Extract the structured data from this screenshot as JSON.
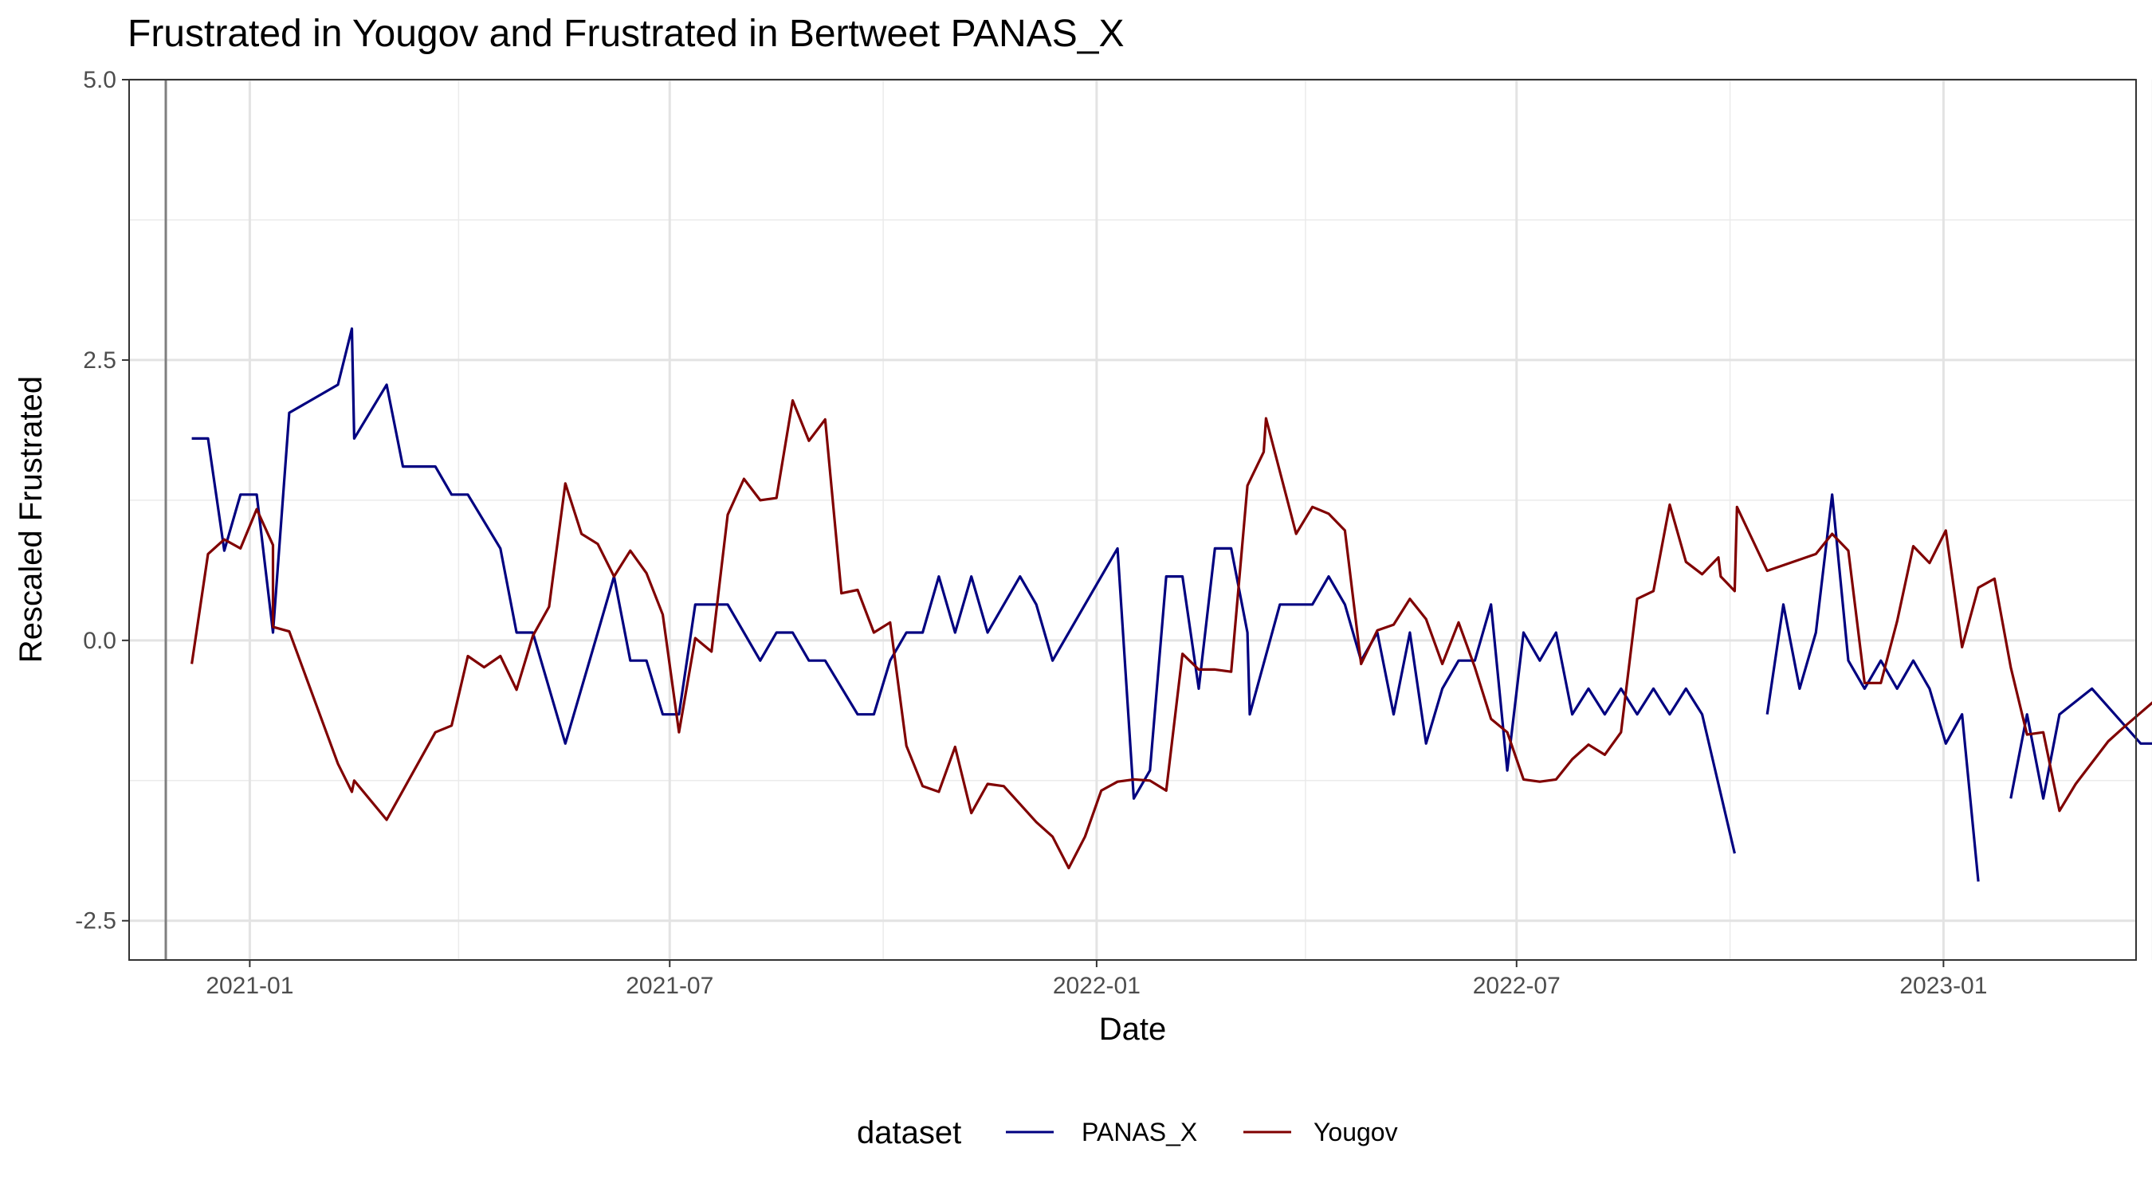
{
  "chart_data": {
    "type": "line",
    "title": "Frustrated  in Yougov and  Frustrated  in Bertweet   PANAS_X",
    "xlabel": "Date",
    "ylabel": "Rescaled  Frustrated",
    "x_type": "date",
    "xlim": [
      "2020-11-10",
      "2023-03-25"
    ],
    "ylim": [
      -2.85,
      5.0
    ],
    "x_ticks": [
      {
        "date": "2021-01-01",
        "label": "2021-01"
      },
      {
        "date": "2021-07-01",
        "label": "2021-07"
      },
      {
        "date": "2022-01-01",
        "label": "2022-01"
      },
      {
        "date": "2022-07-01",
        "label": "2022-07"
      },
      {
        "date": "2023-01-01",
        "label": "2023-01"
      }
    ],
    "x_minor_ticks": [
      "2021-04-01",
      "2021-10-01",
      "2022-04-01",
      "2022-10-01",
      "2023-04-01"
    ],
    "y_ticks": [
      {
        "value": 5.0,
        "label": "5.0"
      },
      {
        "value": 2.5,
        "label": "2.5"
      },
      {
        "value": 0.0,
        "label": "0.0"
      },
      {
        "value": -2.5,
        "label": "-2.5"
      }
    ],
    "y_minor_ticks": [
      3.75,
      1.25,
      -1.25
    ],
    "vline": "2020-11-10",
    "grid": true,
    "legend": {
      "title": "dataset",
      "position": "bottom"
    },
    "series": [
      {
        "name": "PANAS_X",
        "color": "#000080",
        "points": [
          [
            "2020-12-07",
            1.8
          ],
          [
            "2020-12-14",
            1.8
          ],
          [
            "2020-12-21",
            0.8
          ],
          [
            "2020-12-28",
            1.3
          ],
          [
            "2021-01-04",
            1.3
          ],
          [
            "2021-01-11",
            0.07
          ],
          [
            "2021-01-18",
            2.03
          ],
          [
            "2021-02-08",
            2.28
          ],
          [
            "2021-02-14",
            2.78
          ],
          [
            "2021-02-15",
            1.8
          ],
          [
            "2021-03-01",
            2.28
          ],
          [
            "2021-03-08",
            1.55
          ],
          [
            "2021-03-22",
            1.55
          ],
          [
            "2021-03-29",
            1.3
          ],
          [
            "2021-04-05",
            1.3
          ],
          [
            "2021-04-19",
            0.82
          ],
          [
            "2021-04-26",
            0.07
          ],
          [
            "2021-05-03",
            0.07
          ],
          [
            "2021-05-17",
            -0.92
          ],
          [
            "2021-05-31",
            0.07
          ],
          [
            "2021-06-07",
            0.57
          ],
          [
            "2021-06-14",
            -0.18
          ],
          [
            "2021-06-21",
            -0.18
          ],
          [
            "2021-06-28",
            -0.66
          ],
          [
            "2021-07-05",
            -0.66
          ],
          [
            "2021-07-12",
            0.32
          ],
          [
            "2021-07-26",
            0.32
          ],
          [
            "2021-08-09",
            -0.18
          ],
          [
            "2021-08-16",
            0.07
          ],
          [
            "2021-08-23",
            0.07
          ],
          [
            "2021-08-30",
            -0.18
          ],
          [
            "2021-09-06",
            -0.18
          ],
          [
            "2021-09-20",
            -0.66
          ],
          [
            "2021-09-27",
            -0.66
          ],
          [
            "2021-10-04",
            -0.18
          ],
          [
            "2021-10-11",
            0.07
          ],
          [
            "2021-10-18",
            0.07
          ],
          [
            "2021-10-25",
            0.57
          ],
          [
            "2021-11-01",
            0.07
          ],
          [
            "2021-11-08",
            0.57
          ],
          [
            "2021-11-15",
            0.07
          ],
          [
            "2021-11-29",
            0.57
          ],
          [
            "2021-12-06",
            0.32
          ],
          [
            "2021-12-13",
            -0.18
          ],
          [
            "2021-12-27",
            0.32
          ],
          [
            "2022-01-10",
            0.82
          ],
          [
            "2022-01-17",
            -1.41
          ],
          [
            "2022-01-24",
            -1.16
          ],
          [
            "2022-01-31",
            0.57
          ],
          [
            "2022-02-07",
            0.57
          ],
          [
            "2022-02-14",
            -0.43
          ],
          [
            "2022-02-21",
            0.82
          ],
          [
            "2022-02-28",
            0.82
          ],
          [
            "2022-03-07",
            0.07
          ],
          [
            "2022-03-08",
            -0.66
          ],
          [
            "2022-03-21",
            0.32
          ],
          [
            "2022-04-04",
            0.32
          ],
          [
            "2022-04-11",
            0.57
          ],
          [
            "2022-04-18",
            0.32
          ],
          [
            "2022-04-25",
            -0.18
          ],
          [
            "2022-05-02",
            0.07
          ],
          [
            "2022-05-09",
            -0.66
          ],
          [
            "2022-05-16",
            0.07
          ],
          [
            "2022-05-23",
            -0.92
          ],
          [
            "2022-05-30",
            -0.43
          ],
          [
            "2022-06-06",
            -0.18
          ],
          [
            "2022-06-13",
            -0.18
          ],
          [
            "2022-06-20",
            0.32
          ],
          [
            "2022-06-27",
            -1.16
          ],
          [
            "2022-07-04",
            0.07
          ],
          [
            "2022-07-11",
            -0.18
          ],
          [
            "2022-07-18",
            0.07
          ],
          [
            "2022-07-25",
            -0.66
          ],
          [
            "2022-08-01",
            -0.43
          ],
          [
            "2022-08-08",
            -0.66
          ],
          [
            "2022-08-15",
            -0.43
          ],
          [
            "2022-08-22",
            -0.66
          ],
          [
            "2022-08-29",
            -0.43
          ],
          [
            "2022-09-05",
            -0.66
          ],
          [
            "2022-09-12",
            -0.43
          ],
          [
            "2022-09-19",
            -0.66
          ],
          [
            "2022-10-03",
            -1.9
          ],
          null,
          [
            "2022-10-17",
            -0.66
          ],
          [
            "2022-10-24",
            0.32
          ],
          [
            "2022-10-31",
            -0.43
          ],
          [
            "2022-11-07",
            0.07
          ],
          [
            "2022-11-14",
            1.3
          ],
          [
            "2022-11-21",
            -0.18
          ],
          [
            "2022-11-28",
            -0.43
          ],
          [
            "2022-12-05",
            -0.18
          ],
          [
            "2022-12-12",
            -0.43
          ],
          [
            "2022-12-19",
            -0.18
          ],
          [
            "2022-12-26",
            -0.43
          ],
          [
            "2023-01-02",
            -0.92
          ],
          [
            "2023-01-09",
            -0.66
          ],
          [
            "2023-01-16",
            -2.15
          ],
          null,
          [
            "2023-01-30",
            -1.41
          ],
          [
            "2023-02-06",
            -0.66
          ],
          [
            "2023-02-13",
            -1.41
          ],
          [
            "2023-02-20",
            -0.66
          ],
          [
            "2023-03-06",
            -0.43
          ],
          [
            "2023-03-27",
            -0.92
          ],
          [
            "2023-04-03",
            -0.92
          ]
        ]
      },
      {
        "name": "Yougov",
        "color": "#800000",
        "points": [
          [
            "2020-12-07",
            -0.21
          ],
          [
            "2020-12-14",
            0.77
          ],
          [
            "2020-12-21",
            0.9
          ],
          [
            "2020-12-28",
            0.82
          ],
          [
            "2021-01-04",
            1.17
          ],
          [
            "2021-01-11",
            0.85
          ],
          [
            "2021-01-11",
            0.12
          ],
          [
            "2021-01-18",
            0.08
          ],
          [
            "2021-02-08",
            -1.1
          ],
          [
            "2021-02-14",
            -1.35
          ],
          [
            "2021-02-15",
            -1.25
          ],
          [
            "2021-03-01",
            -1.6
          ],
          [
            "2021-03-22",
            -0.82
          ],
          [
            "2021-03-29",
            -0.76
          ],
          [
            "2021-04-05",
            -0.14
          ],
          [
            "2021-04-12",
            -0.24
          ],
          [
            "2021-04-19",
            -0.14
          ],
          [
            "2021-04-26",
            -0.44
          ],
          [
            "2021-05-03",
            0.04
          ],
          [
            "2021-05-10",
            0.3
          ],
          [
            "2021-05-17",
            1.4
          ],
          [
            "2021-05-24",
            0.95
          ],
          [
            "2021-05-31",
            0.86
          ],
          [
            "2021-06-07",
            0.57
          ],
          [
            "2021-06-14",
            0.8
          ],
          [
            "2021-06-21",
            0.6
          ],
          [
            "2021-06-28",
            0.23
          ],
          [
            "2021-07-05",
            -0.82
          ],
          [
            "2021-07-12",
            0.02
          ],
          [
            "2021-07-19",
            -0.1
          ],
          [
            "2021-07-26",
            1.12
          ],
          [
            "2021-08-02",
            1.44
          ],
          [
            "2021-08-09",
            1.25
          ],
          [
            "2021-08-16",
            1.27
          ],
          [
            "2021-08-23",
            2.14
          ],
          [
            "2021-08-30",
            1.78
          ],
          [
            "2021-09-06",
            1.97
          ],
          [
            "2021-09-13",
            0.42
          ],
          [
            "2021-09-20",
            0.45
          ],
          [
            "2021-09-27",
            0.07
          ],
          [
            "2021-10-04",
            0.16
          ],
          [
            "2021-10-11",
            -0.94
          ],
          [
            "2021-10-18",
            -1.3
          ],
          [
            "2021-10-25",
            -1.35
          ],
          [
            "2021-11-01",
            -0.95
          ],
          [
            "2021-11-08",
            -1.54
          ],
          [
            "2021-11-15",
            -1.28
          ],
          [
            "2021-11-22",
            -1.3
          ],
          [
            "2021-12-06",
            -1.62
          ],
          [
            "2021-12-13",
            -1.75
          ],
          [
            "2021-12-20",
            -2.03
          ],
          [
            "2021-12-27",
            -1.75
          ],
          [
            "2022-01-03",
            -1.34
          ],
          [
            "2022-01-10",
            -1.26
          ],
          [
            "2022-01-17",
            -1.24
          ],
          [
            "2022-01-24",
            -1.25
          ],
          [
            "2022-01-31",
            -1.34
          ],
          [
            "2022-02-07",
            -0.12
          ],
          [
            "2022-02-14",
            -0.26
          ],
          [
            "2022-02-21",
            -0.26
          ],
          [
            "2022-02-28",
            -0.28
          ],
          [
            "2022-03-07",
            1.38
          ],
          [
            "2022-03-14",
            1.68
          ],
          [
            "2022-03-15",
            1.98
          ],
          [
            "2022-03-28",
            0.95
          ],
          [
            "2022-04-04",
            1.19
          ],
          [
            "2022-04-11",
            1.13
          ],
          [
            "2022-04-18",
            0.98
          ],
          [
            "2022-04-25",
            -0.21
          ],
          [
            "2022-05-02",
            0.09
          ],
          [
            "2022-05-09",
            0.14
          ],
          [
            "2022-05-16",
            0.37
          ],
          [
            "2022-05-23",
            0.19
          ],
          [
            "2022-05-30",
            -0.21
          ],
          [
            "2022-06-06",
            0.16
          ],
          [
            "2022-06-13",
            -0.24
          ],
          [
            "2022-06-20",
            -0.7
          ],
          [
            "2022-06-27",
            -0.82
          ],
          [
            "2022-07-04",
            -1.24
          ],
          [
            "2022-07-11",
            -1.26
          ],
          [
            "2022-07-18",
            -1.24
          ],
          [
            "2022-07-25",
            -1.06
          ],
          [
            "2022-08-01",
            -0.93
          ],
          [
            "2022-08-08",
            -1.02
          ],
          [
            "2022-08-15",
            -0.82
          ],
          [
            "2022-08-22",
            0.37
          ],
          [
            "2022-08-29",
            0.44
          ],
          [
            "2022-09-05",
            1.21
          ],
          [
            "2022-09-12",
            0.7
          ],
          [
            "2022-09-19",
            0.59
          ],
          [
            "2022-09-26",
            0.74
          ],
          [
            "2022-09-27",
            0.57
          ],
          [
            "2022-10-03",
            0.44
          ],
          [
            "2022-10-04",
            1.19
          ],
          [
            "2022-10-17",
            0.62
          ],
          [
            "2022-11-07",
            0.77
          ],
          [
            "2022-11-14",
            0.95
          ],
          [
            "2022-11-21",
            0.8
          ],
          [
            "2022-11-28",
            -0.38
          ],
          [
            "2022-12-05",
            -0.38
          ],
          [
            "2022-12-12",
            0.17
          ],
          [
            "2022-12-19",
            0.84
          ],
          [
            "2022-12-26",
            0.69
          ],
          [
            "2023-01-02",
            0.98
          ],
          [
            "2023-01-09",
            -0.06
          ],
          [
            "2023-01-16",
            0.47
          ],
          [
            "2023-01-23",
            0.55
          ],
          [
            "2023-01-30",
            -0.24
          ],
          [
            "2023-02-06",
            -0.84
          ],
          [
            "2023-02-13",
            -0.82
          ],
          [
            "2023-02-20",
            -1.52
          ],
          [
            "2023-02-27",
            -1.28
          ],
          [
            "2023-03-13",
            -0.9
          ],
          [
            "2023-03-20",
            -0.77
          ],
          [
            "2023-04-03",
            -0.52
          ]
        ]
      }
    ]
  }
}
